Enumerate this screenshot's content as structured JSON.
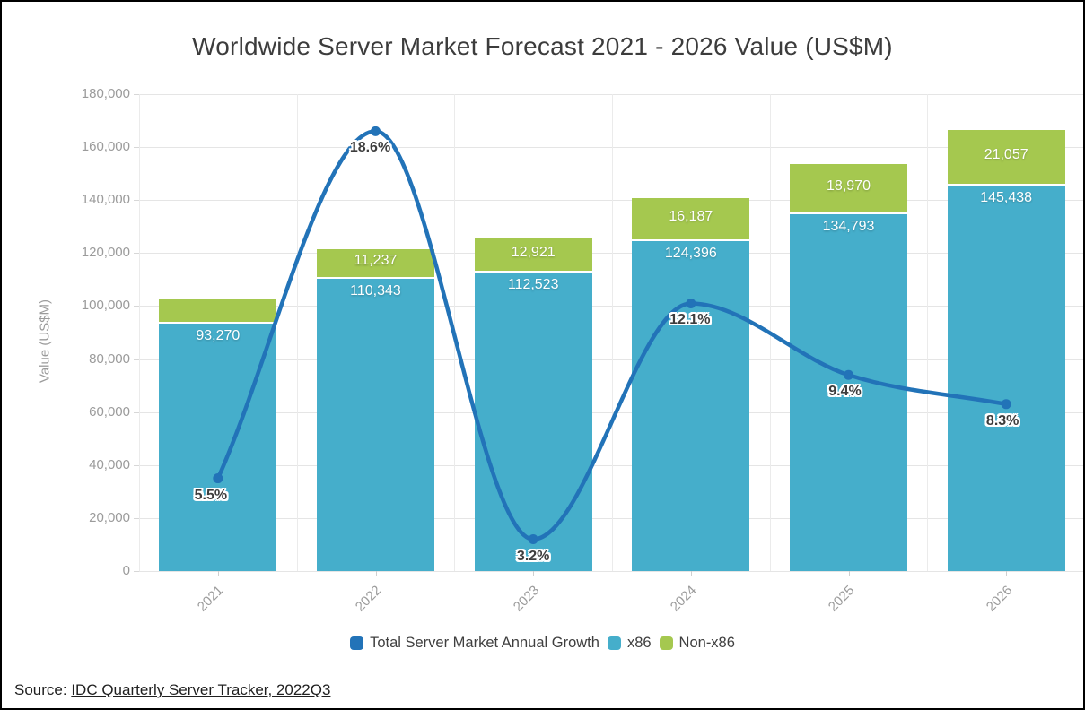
{
  "title": "Worldwide Server Market Forecast 2021 - 2026 Value (US$M)",
  "colors": {
    "x86_bar": "#45AECB",
    "non_x86_bar": "#A5C84F",
    "growth_line": "#2273B8",
    "grid": "#E5E5E5",
    "axis_text": "#9B9B9B"
  },
  "y_axis": {
    "label": "Value (US$M)",
    "ticks": [
      "0",
      "20,000",
      "40,000",
      "60,000",
      "80,000",
      "100,000",
      "120,000",
      "140,000",
      "160,000",
      "180,000"
    ]
  },
  "x_axis": {
    "ticks": [
      "2021",
      "2022",
      "2023",
      "2024",
      "2025",
      "2026"
    ]
  },
  "legend": {
    "items": [
      {
        "label": "Total Server Market Annual Growth",
        "color": "#2273B8"
      },
      {
        "label": "x86",
        "color": "#45AECB"
      },
      {
        "label": "Non-x86",
        "color": "#A5C84F"
      }
    ]
  },
  "source": {
    "prefix": "Source:",
    "link_text": "IDC Quarterly Server Tracker, 2022Q3"
  },
  "chart_data": {
    "type": "bar",
    "subtype": "stacked-bars-with-line-overlay",
    "title": "Worldwide Server Market Forecast 2021 - 2026 Value (US$M)",
    "categories": [
      "2021",
      "2022",
      "2023",
      "2024",
      "2025",
      "2026"
    ],
    "series": [
      {
        "name": "x86",
        "type": "bar",
        "color": "#45AECB",
        "values": [
          93270,
          110343,
          112523,
          124396,
          134793,
          145438
        ],
        "value_labels": [
          "93,270",
          "110,343",
          "112,523",
          "124,396",
          "134,793",
          "145,438"
        ]
      },
      {
        "name": "Non-x86",
        "type": "bar",
        "color": "#A5C84F",
        "values": [
          9243,
          11237,
          12921,
          16187,
          18970,
          21057
        ],
        "value_labels": [
          "",
          "11,237",
          "12,921",
          "16,187",
          "18,970",
          "21,057"
        ]
      },
      {
        "name": "Total Server Market Annual Growth",
        "type": "line",
        "color": "#2273B8",
        "unit": "%",
        "values": [
          5.5,
          18.6,
          3.2,
          12.1,
          9.4,
          8.3
        ],
        "value_labels": [
          "5.5%",
          "18.6%",
          "3.2%",
          "12.1%",
          "9.4%",
          "8.3%"
        ]
      }
    ],
    "ylabel": "Value (US$M)",
    "ylim": [
      0,
      180000
    ],
    "ytick_step": 20000,
    "secondary_axis": {
      "visible": false,
      "range_pct": [
        2,
        20
      ]
    },
    "grid": true,
    "legend_position": "bottom"
  }
}
